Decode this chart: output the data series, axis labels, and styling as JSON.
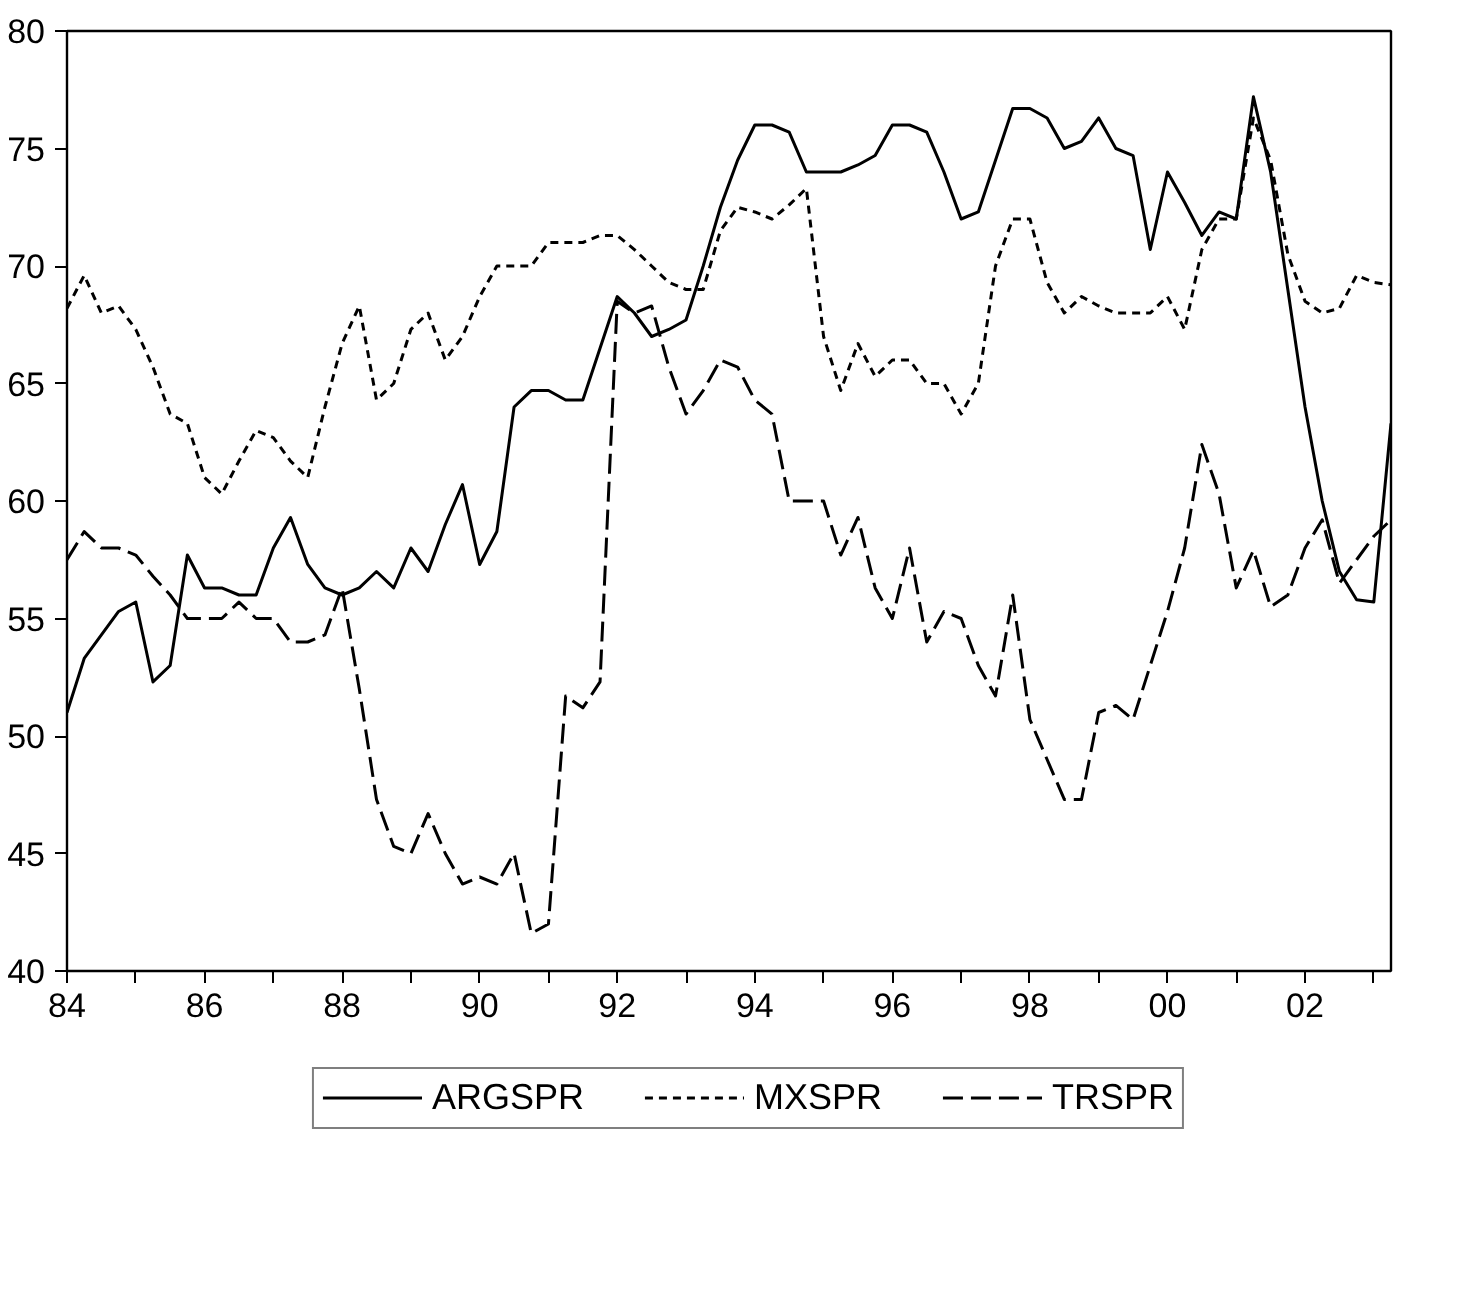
{
  "chart_data": {
    "type": "line",
    "x": [
      1984.0,
      1984.25,
      1984.5,
      1984.75,
      1985.0,
      1985.25,
      1985.5,
      1985.75,
      1986.0,
      1986.25,
      1986.5,
      1986.75,
      1987.0,
      1987.25,
      1987.5,
      1987.75,
      1988.0,
      1988.25,
      1988.5,
      1988.75,
      1989.0,
      1989.25,
      1989.5,
      1989.75,
      1990.0,
      1990.25,
      1990.5,
      1990.75,
      1991.0,
      1991.25,
      1991.5,
      1991.75,
      1992.0,
      1992.25,
      1992.5,
      1992.75,
      1993.0,
      1993.25,
      1993.5,
      1993.75,
      1994.0,
      1994.25,
      1994.5,
      1994.75,
      1995.0,
      1995.25,
      1995.5,
      1995.75,
      1996.0,
      1996.25,
      1996.5,
      1996.75,
      1997.0,
      1997.25,
      1997.5,
      1997.75,
      1998.0,
      1998.25,
      1998.5,
      1998.75,
      1999.0,
      1999.25,
      1999.5,
      1999.75,
      2000.0,
      2000.25,
      2000.5,
      2000.75,
      2001.0,
      2001.25,
      2001.5,
      2001.75,
      2002.0,
      2002.25,
      2002.5,
      2002.75,
      2003.0,
      2003.25
    ],
    "series": [
      {
        "name": "ARGSPR",
        "color": "#000000",
        "line_style": "solid",
        "values": [
          51,
          53.3,
          54.3,
          55.3,
          55.7,
          52.3,
          53,
          57.7,
          56.3,
          56.3,
          56,
          56,
          58,
          59.3,
          57.3,
          56.3,
          56,
          56.3,
          57,
          56.3,
          58,
          57,
          59,
          60.7,
          57.3,
          58.7,
          64,
          64.7,
          64.7,
          64.3,
          64.3,
          66.5,
          68.7,
          68,
          67,
          67.3,
          67.7,
          70,
          72.5,
          74.5,
          76,
          76,
          75.7,
          74,
          74,
          74,
          74.3,
          74.7,
          76,
          76,
          75.7,
          74,
          72,
          72.3,
          74.5,
          76.7,
          76.7,
          76.3,
          75,
          75.3,
          76.3,
          75,
          74.7,
          70.7,
          74,
          72.7,
          71.3,
          72.3,
          72,
          77.2,
          74,
          69,
          64,
          60,
          57,
          55.8,
          55.7,
          63.3
        ]
      },
      {
        "name": "MXSPR",
        "color": "#000000",
        "line_style": "dotted",
        "values": [
          68.2,
          69.6,
          68,
          68.3,
          67.3,
          65.7,
          63.7,
          63.3,
          61,
          60.3,
          61.7,
          63,
          62.7,
          61.7,
          61,
          64,
          66.7,
          68.3,
          64.3,
          65,
          67.3,
          68,
          66,
          67,
          68.7,
          70,
          70,
          70,
          71,
          71,
          71,
          71.3,
          71.3,
          70.7,
          70,
          69.3,
          69,
          69,
          71.5,
          72.5,
          72.3,
          72,
          72.6,
          73.3,
          67,
          64.7,
          66.7,
          65.3,
          66,
          66,
          65,
          65,
          63.7,
          65,
          70,
          72,
          72,
          69.3,
          68,
          68.7,
          68.3,
          68,
          68,
          68,
          68.7,
          67.3,
          70.7,
          72,
          72,
          76.3,
          74.5,
          70.5,
          68.5,
          68,
          68.2,
          69.6,
          69.3,
          69.2
        ]
      },
      {
        "name": "TRSPR",
        "color": "#000000",
        "line_style": "dashed",
        "values": [
          57.5,
          58.7,
          58,
          58,
          57.7,
          56.8,
          56,
          55,
          55,
          55,
          55.7,
          55,
          55,
          54,
          54,
          54.3,
          56.3,
          52,
          47.3,
          45.3,
          45,
          46.7,
          45,
          43.7,
          44,
          43.7,
          45,
          41.6,
          42,
          51.7,
          51.2,
          52.3,
          68.5,
          68,
          68.3,
          65.7,
          63.7,
          64.7,
          66,
          65.7,
          64.3,
          63.7,
          60,
          60,
          60,
          57.7,
          59.3,
          56.3,
          55,
          58,
          54,
          55.3,
          55,
          53,
          51.7,
          56,
          50.7,
          49,
          47.3,
          47.3,
          51,
          51.3,
          50.7,
          53,
          55.3,
          58,
          62.4,
          60.3,
          56.3,
          57.9,
          55.5,
          56,
          58,
          59.2,
          56.5,
          57.5,
          58.5,
          59.2
        ]
      }
    ],
    "xlim": [
      1984,
      2003.25
    ],
    "xticks": [
      {
        "value": 1984,
        "label": "84"
      },
      {
        "value": 1985,
        "label": null
      },
      {
        "value": 1986,
        "label": "86"
      },
      {
        "value": 1987,
        "label": null
      },
      {
        "value": 1988,
        "label": "88"
      },
      {
        "value": 1989,
        "label": null
      },
      {
        "value": 1990,
        "label": "90"
      },
      {
        "value": 1991,
        "label": null
      },
      {
        "value": 1992,
        "label": "92"
      },
      {
        "value": 1993,
        "label": null
      },
      {
        "value": 1994,
        "label": "94"
      },
      {
        "value": 1995,
        "label": null
      },
      {
        "value": 1996,
        "label": "96"
      },
      {
        "value": 1997,
        "label": null
      },
      {
        "value": 1998,
        "label": "98"
      },
      {
        "value": 1999,
        "label": null
      },
      {
        "value": 2000,
        "label": "00"
      },
      {
        "value": 2001,
        "label": null
      },
      {
        "value": 2002,
        "label": "02"
      },
      {
        "value": 2003,
        "label": null
      }
    ],
    "ylim": [
      40,
      80
    ],
    "yticks": [
      40,
      45,
      50,
      55,
      60,
      65,
      70,
      75,
      80
    ],
    "grid": false,
    "legend": "bottom"
  }
}
